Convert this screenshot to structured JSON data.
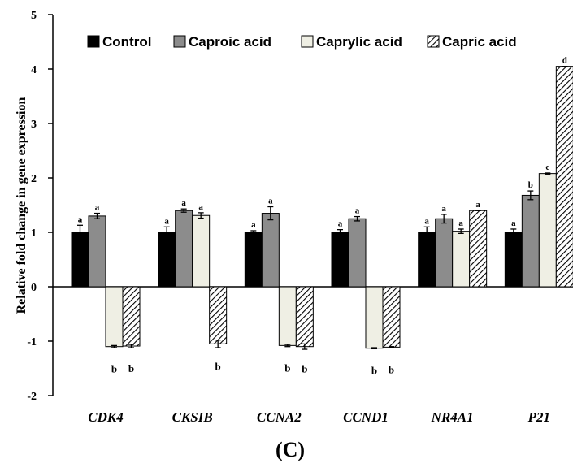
{
  "chart_data": {
    "type": "bar",
    "categories": [
      "CDK4",
      "CKSIB",
      "CCNA2",
      "CCND1",
      "NR4A1",
      "P21"
    ],
    "ylabel": "Relative fold change in gene expression",
    "xlabel": "",
    "ylim": [
      -2,
      5
    ],
    "yticks": [
      "-2",
      "-1",
      "0",
      "1",
      "2",
      "3",
      "4",
      "5"
    ],
    "panel_label": "(C)",
    "legend_position": "top",
    "series": [
      {
        "name": "Control",
        "pattern": "solid-black",
        "values": [
          1.0,
          1.0,
          1.0,
          1.0,
          1.0,
          1.0
        ],
        "errors": [
          0.13,
          0.1,
          0.03,
          0.05,
          0.1,
          0.06
        ],
        "labels": [
          "a",
          "a",
          "a",
          "a",
          "a",
          "a"
        ]
      },
      {
        "name": "Caproic acid",
        "pattern": "gray",
        "values": [
          1.3,
          1.4,
          1.35,
          1.25,
          1.25,
          1.68
        ],
        "errors": [
          0.05,
          0.03,
          0.12,
          0.04,
          0.08,
          0.08
        ],
        "labels": [
          "a",
          "a",
          "a",
          "a",
          "a",
          "b"
        ]
      },
      {
        "name": "Caprylic acid",
        "pattern": "light",
        "values": [
          -1.1,
          1.31,
          -1.08,
          -1.13,
          1.02,
          2.08
        ],
        "errors": [
          0.02,
          0.05,
          0.02,
          0.01,
          0.04,
          0.01
        ],
        "labels": [
          "b",
          "a",
          "b",
          "b",
          "a",
          "c"
        ]
      },
      {
        "name": "Capric acid",
        "pattern": "hatched",
        "values": [
          -1.09,
          -1.05,
          -1.1,
          -1.11,
          1.4,
          4.05
        ],
        "errors": [
          0.03,
          0.07,
          0.05,
          0.01,
          0.0,
          0.0
        ],
        "labels": [
          "b",
          "b",
          "b",
          "b",
          "a",
          "d"
        ]
      }
    ],
    "colors": {
      "solid-black": "#000000",
      "gray": "#8c8c8c",
      "light": "#efefe4",
      "hatch-line": "#000000"
    }
  }
}
